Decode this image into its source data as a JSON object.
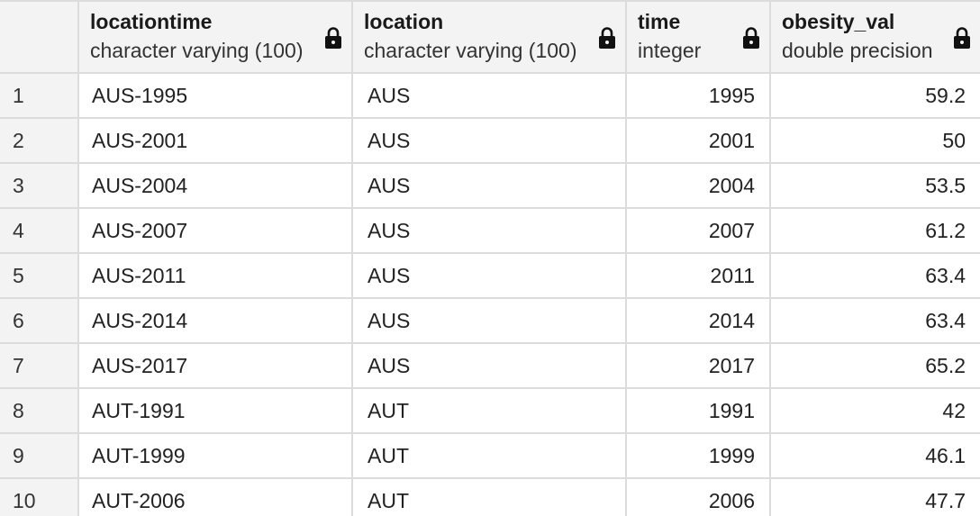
{
  "columns": [
    {
      "name": "locationtime",
      "type": "character varying (100)"
    },
    {
      "name": "location",
      "type": "character varying (100)"
    },
    {
      "name": "time",
      "type": "integer"
    },
    {
      "name": "obesity_val",
      "type": "double precision"
    }
  ],
  "rows": [
    {
      "n": "1",
      "locationtime": "AUS-1995",
      "location": "AUS",
      "time": "1995",
      "obesity_val": "59.2"
    },
    {
      "n": "2",
      "locationtime": "AUS-2001",
      "location": "AUS",
      "time": "2001",
      "obesity_val": "50"
    },
    {
      "n": "3",
      "locationtime": "AUS-2004",
      "location": "AUS",
      "time": "2004",
      "obesity_val": "53.5"
    },
    {
      "n": "4",
      "locationtime": "AUS-2007",
      "location": "AUS",
      "time": "2007",
      "obesity_val": "61.2"
    },
    {
      "n": "5",
      "locationtime": "AUS-2011",
      "location": "AUS",
      "time": "2011",
      "obesity_val": "63.4"
    },
    {
      "n": "6",
      "locationtime": "AUS-2014",
      "location": "AUS",
      "time": "2014",
      "obesity_val": "63.4"
    },
    {
      "n": "7",
      "locationtime": "AUS-2017",
      "location": "AUS",
      "time": "2017",
      "obesity_val": "65.2"
    },
    {
      "n": "8",
      "locationtime": "AUT-1991",
      "location": "AUT",
      "time": "1991",
      "obesity_val": "42"
    },
    {
      "n": "9",
      "locationtime": "AUT-1999",
      "location": "AUT",
      "time": "1999",
      "obesity_val": "46.1"
    },
    {
      "n": "10",
      "locationtime": "AUT-2006",
      "location": "AUT",
      "time": "2006",
      "obesity_val": "47.7"
    }
  ],
  "icons": {
    "column_lock": "lock-icon"
  },
  "colors": {
    "header_bg": "#f3f3f3",
    "grid_line": "#dcdcdc"
  }
}
